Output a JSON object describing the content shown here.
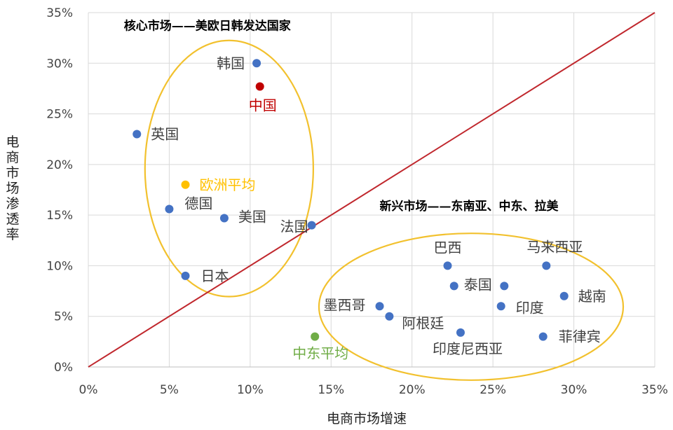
{
  "chart_data": {
    "type": "scatter",
    "xlabel": "电商市场增速",
    "ylabel": "电商市场渗透率",
    "xlim": [
      0,
      0.35
    ],
    "ylim": [
      0,
      0.35
    ],
    "x_ticks": [
      "0%",
      "5%",
      "10%",
      "15%",
      "20%",
      "25%",
      "30%",
      "35%"
    ],
    "y_ticks": [
      "0%",
      "5%",
      "10%",
      "15%",
      "20%",
      "25%",
      "30%",
      "35%"
    ],
    "grid": true,
    "reference_line": {
      "from": [
        0,
        0
      ],
      "to": [
        0.35,
        0.35
      ],
      "color": "#C0272D"
    },
    "group_titles": [
      {
        "text": "核心市场——美欧日韩发达国家",
        "x": 0.022,
        "y": 0.333
      },
      {
        "text": "新兴市场——东南亚、中东、拉美",
        "x": 0.18,
        "y": 0.155
      }
    ],
    "ellipses": [
      {
        "cx": 0.087,
        "cy": 0.196,
        "rx": 0.052,
        "ry": 0.1265,
        "color": "#F2C12E"
      },
      {
        "cx": 0.2365,
        "cy": 0.0595,
        "rx": 0.094,
        "ry": 0.0725,
        "color": "#F2C12E"
      }
    ],
    "points": [
      {
        "label": "韩国",
        "x": 0.104,
        "y": 0.3,
        "color": "#4472C4"
      },
      {
        "label": "中国",
        "x": 0.106,
        "y": 0.277,
        "color": "#C00000"
      },
      {
        "label": "英国",
        "x": 0.03,
        "y": 0.23,
        "color": "#4472C4"
      },
      {
        "label": "欧洲平均",
        "x": 0.06,
        "y": 0.18,
        "color": "#FFC000"
      },
      {
        "label": "德国",
        "x": 0.05,
        "y": 0.156,
        "color": "#4472C4"
      },
      {
        "label": "美国",
        "x": 0.084,
        "y": 0.147,
        "color": "#4472C4"
      },
      {
        "label": "法国",
        "x": 0.138,
        "y": 0.14,
        "color": "#4472C4"
      },
      {
        "label": "日本",
        "x": 0.06,
        "y": 0.09,
        "color": "#4472C4"
      },
      {
        "label": "中东平均",
        "x": 0.14,
        "y": 0.03,
        "color": "#70AD47"
      },
      {
        "label": "巴西",
        "x": 0.222,
        "y": 0.1,
        "color": "#4472C4"
      },
      {
        "label": "马来西亚",
        "x": 0.283,
        "y": 0.1,
        "color": "#4472C4"
      },
      {
        "label": "泰国",
        "x": 0.226,
        "y": 0.08,
        "color": "#4472C4"
      },
      {
        "label": "",
        "x": 0.257,
        "y": 0.08,
        "color": "#4472C4"
      },
      {
        "label": "越南",
        "x": 0.294,
        "y": 0.07,
        "color": "#4472C4"
      },
      {
        "label": "印度",
        "x": 0.255,
        "y": 0.06,
        "color": "#4472C4"
      },
      {
        "label": "墨西哥",
        "x": 0.18,
        "y": 0.06,
        "color": "#4472C4"
      },
      {
        "label": "阿根廷",
        "x": 0.186,
        "y": 0.05,
        "color": "#4472C4"
      },
      {
        "label": "印度尼西亚",
        "x": 0.23,
        "y": 0.034,
        "color": "#4472C4"
      },
      {
        "label": "菲律宾",
        "x": 0.281,
        "y": 0.03,
        "color": "#4472C4"
      }
    ]
  }
}
